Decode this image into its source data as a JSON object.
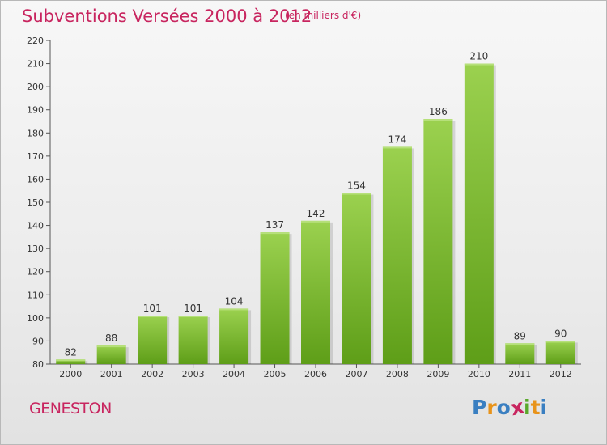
{
  "title": "Subventions Versées 2000 à 2012",
  "subtitle": "(en milliers d'€)",
  "commune": "GENESTON",
  "logo": {
    "text": "Proxiti",
    "letters": [
      "P",
      "r",
      "o",
      "x",
      "i",
      "t",
      "i"
    ],
    "colors": [
      "#3a7fc1",
      "#e8931a",
      "#3a7fc1",
      "#c8255f",
      "#5aa92b",
      "#e8931a",
      "#3a7fc1"
    ]
  },
  "colors": {
    "accent": "#c8255f",
    "bar_top": "#9bd14f",
    "bar_bottom": "#5e9e18"
  },
  "chart_data": {
    "type": "bar",
    "categories": [
      "2000",
      "2001",
      "2002",
      "2003",
      "2004",
      "2005",
      "2006",
      "2007",
      "2008",
      "2009",
      "2010",
      "2011",
      "2012"
    ],
    "values": [
      82,
      88,
      101,
      101,
      104,
      137,
      142,
      154,
      174,
      186,
      210,
      89,
      90
    ],
    "ylim": [
      80,
      220
    ],
    "yticks": [
      80,
      90,
      100,
      110,
      120,
      130,
      140,
      150,
      160,
      170,
      180,
      190,
      200,
      210,
      220
    ],
    "grid": false,
    "data_labels": true
  }
}
